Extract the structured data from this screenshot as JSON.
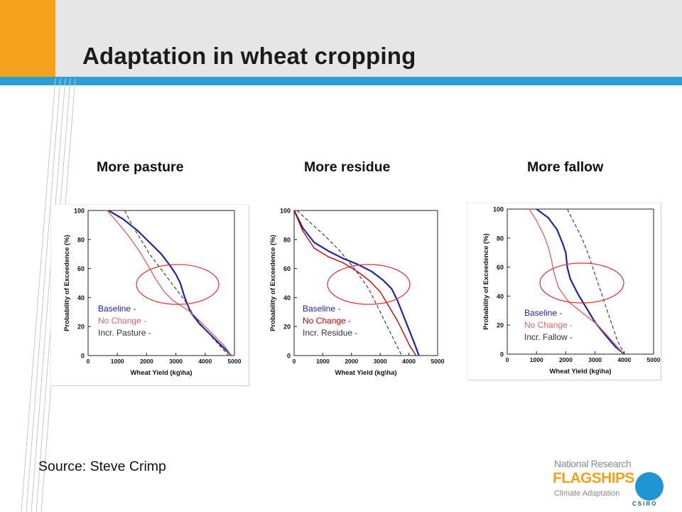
{
  "slide": {
    "title": "Adaptation in wheat cropping",
    "source": "Source: Steve Crimp",
    "logo": {
      "line1": "National Research",
      "line2": "FLAGSHIPS",
      "line3": "Climate Adaptation",
      "org": "CSIRO"
    },
    "colors": {
      "accent_blue": "#2a9fd6",
      "accent_orange": "#f4a11c",
      "baseline": "#2222aa",
      "no_change": "#e06666",
      "incr": "#444444",
      "ellipse": "#e03030"
    }
  },
  "chart_data": [
    {
      "type": "line",
      "heading": "More pasture",
      "xlabel": "Wheat Yield (kg\\ha)",
      "ylabel": "Probability of Exceedence (%)",
      "xlim": [
        0,
        5000
      ],
      "ylim": [
        0,
        100
      ],
      "xticks": [
        "0",
        "1000",
        "2000",
        "3000",
        "4000",
        "5000"
      ],
      "yticks": [
        "0",
        "20",
        "40",
        "60",
        "80",
        "100"
      ],
      "legend": [
        "Baseline -",
        "No Change -",
        "Incr. Pasture -"
      ],
      "series": [
        {
          "name": "Baseline -",
          "color": "#2222aa",
          "dash": false,
          "x": [
            700,
            1200,
            1700,
            2100,
            2500,
            2800,
            3000,
            3150,
            3300,
            3500,
            3800,
            4200,
            4600,
            4900
          ],
          "y": [
            100,
            94,
            86,
            78,
            70,
            62,
            56,
            50,
            40,
            30,
            22,
            14,
            6,
            0
          ]
        },
        {
          "name": "No Change -",
          "color": "#e06666",
          "dash": false,
          "x": [
            650,
            1000,
            1400,
            1750,
            2050,
            2300,
            2600,
            2900,
            3200,
            3500,
            3800,
            4200,
            4600,
            4900
          ],
          "y": [
            100,
            92,
            82,
            72,
            62,
            53,
            44,
            38,
            34,
            30,
            24,
            16,
            8,
            0
          ]
        },
        {
          "name": "Incr. Pasture -",
          "color": "#444444",
          "dash": true,
          "x": [
            1250,
            1500,
            1800,
            2100,
            2400,
            2700,
            3000,
            3300,
            3600,
            4000,
            4400,
            4800
          ],
          "y": [
            100,
            90,
            80,
            70,
            62,
            54,
            46,
            38,
            28,
            18,
            9,
            0
          ]
        }
      ]
    },
    {
      "type": "line",
      "heading": "More residue",
      "xlabel": "Wheat Yield (kg\\ha)",
      "ylabel": "Probability of Exceedence (%)",
      "xlim": [
        0,
        5000
      ],
      "ylim": [
        0,
        100
      ],
      "xticks": [
        "0",
        "1000",
        "2000",
        "3000",
        "4000",
        "5000"
      ],
      "yticks": [
        "0",
        "20",
        "40",
        "60",
        "80",
        "100"
      ],
      "legend": [
        "Baseline -",
        "No Change -",
        "Incr. Residue -"
      ],
      "series": [
        {
          "name": "Baseline -",
          "color": "#2222aa",
          "dash": false,
          "x": [
            0,
            300,
            700,
            1200,
            1700,
            2200,
            2700,
            3100,
            3400,
            3600,
            3800,
            4000,
            4200,
            4350
          ],
          "y": [
            100,
            88,
            78,
            72,
            67,
            63,
            58,
            52,
            46,
            38,
            28,
            18,
            8,
            0
          ]
        },
        {
          "name": "No Change -",
          "color": "#cc0000",
          "dash": false,
          "x": [
            0,
            300,
            700,
            1200,
            1700,
            2200,
            2600,
            3000,
            3300,
            3600,
            3850,
            4050,
            4250
          ],
          "y": [
            100,
            86,
            74,
            68,
            64,
            58,
            52,
            44,
            34,
            24,
            14,
            6,
            0
          ]
        },
        {
          "name": "Incr. Residue -",
          "color": "#444444",
          "dash": true,
          "x": [
            100,
            600,
            1100,
            1600,
            2100,
            2600,
            2900,
            3200,
            3500,
            3750
          ],
          "y": [
            100,
            91,
            82,
            72,
            60,
            46,
            34,
            22,
            10,
            0
          ]
        }
      ]
    },
    {
      "type": "line",
      "heading": "More fallow",
      "xlabel": "Wheat Yield (kg\\ha)",
      "ylabel": "Probability of Exceedence (%)",
      "xlim": [
        0,
        5000
      ],
      "ylim": [
        0,
        100
      ],
      "xticks": [
        "0",
        "1000",
        "2000",
        "3000",
        "4000",
        "5000"
      ],
      "yticks": [
        "0",
        "20",
        "40",
        "60",
        "80",
        "100"
      ],
      "legend": [
        "Baseline -",
        "No Change -",
        "Incr. Fallow -"
      ],
      "series": [
        {
          "name": "Baseline -",
          "color": "#2222aa",
          "dash": false,
          "x": [
            1000,
            1400,
            1700,
            1900,
            2000,
            2050,
            2150,
            2400,
            2700,
            3000,
            3400,
            3700,
            4000
          ],
          "y": [
            100,
            94,
            86,
            76,
            70,
            60,
            52,
            42,
            32,
            22,
            12,
            5,
            0
          ]
        },
        {
          "name": "No Change -",
          "color": "#e06666",
          "dash": false,
          "x": [
            750,
            1000,
            1250,
            1400,
            1500,
            1600,
            1750,
            2100,
            2600,
            3100,
            3500,
            3800,
            4000
          ],
          "y": [
            100,
            92,
            82,
            74,
            66,
            56,
            46,
            36,
            28,
            20,
            11,
            4,
            0
          ]
        },
        {
          "name": "Incr. Fallow -",
          "color": "#444444",
          "dash": true,
          "x": [
            2050,
            2300,
            2550,
            2750,
            2950,
            3150,
            3350,
            3550,
            3750,
            4000
          ],
          "y": [
            100,
            90,
            80,
            70,
            58,
            46,
            34,
            22,
            10,
            0
          ]
        }
      ]
    }
  ]
}
